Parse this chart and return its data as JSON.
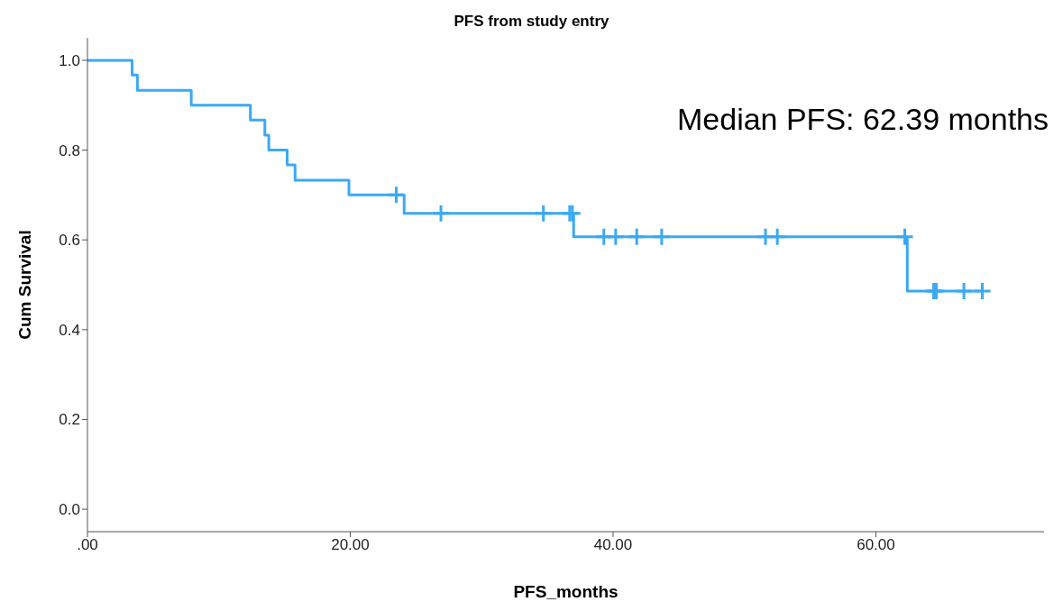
{
  "chart_data": {
    "type": "step",
    "title": "PFS from study entry",
    "xlabel": "PFS_months",
    "ylabel": "Cum Survival",
    "annotations": [
      "Median PFS: 62.39 months"
    ],
    "series": [
      {
        "color": "#3aa9f5",
        "x": [
          0,
          3.4,
          3.8,
          7.9,
          12.4,
          13.5,
          13.8,
          15.2,
          15.8,
          19.9,
          24.1,
          37.0,
          62.39,
          68.1
        ],
        "values": [
          1.0,
          0.967,
          0.933,
          0.9,
          0.867,
          0.833,
          0.8,
          0.767,
          0.733,
          0.7,
          0.659,
          0.607,
          0.486,
          0.486
        ]
      },
      {
        "type": "scatter",
        "marker": "cross",
        "color": "#3aa9f5",
        "x": [
          23.5,
          26.9,
          34.7,
          36.7,
          36.9,
          39.3,
          40.2,
          41.8,
          43.7,
          51.6,
          52.5,
          62.2,
          64.4,
          64.6,
          66.7,
          68.1
        ],
        "values": [
          0.7,
          0.659,
          0.659,
          0.659,
          0.659,
          0.607,
          0.607,
          0.607,
          0.607,
          0.607,
          0.607,
          0.607,
          0.486,
          0.486,
          0.486,
          0.486
        ]
      }
    ],
    "xlim": [
      0,
      72.8
    ],
    "xticks": [
      {
        "value": 0,
        "label": ".00"
      },
      {
        "value": 20,
        "label": "20.00"
      },
      {
        "value": 40,
        "label": "40.00"
      },
      {
        "value": 60,
        "label": "60.00"
      }
    ],
    "ylim": [
      -0.05,
      1.05
    ],
    "yticks": [
      {
        "value": 0,
        "label": "0.0"
      },
      {
        "value": 0.2,
        "label": "0.2"
      },
      {
        "value": 0.4,
        "label": "0.4"
      },
      {
        "value": 0.6,
        "label": "0.6"
      },
      {
        "value": 0.8,
        "label": "0.8"
      },
      {
        "value": 1.0,
        "label": "1.0"
      }
    ],
    "grid": false,
    "legend": false
  }
}
